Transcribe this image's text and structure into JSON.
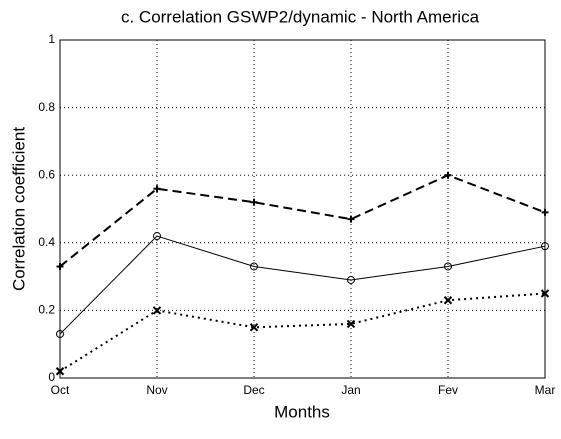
{
  "chart_data": {
    "type": "line",
    "title": "c. Correlation GSWP2/dynamic - North America",
    "x_label": "Months",
    "y_label": "Correlation coefficient",
    "categories": [
      "Oct",
      "Nov",
      "Dec",
      "Jan",
      "Fev",
      "Mar"
    ],
    "series": [
      {
        "color": "#000000",
        "dash": "dashed",
        "marker": "plus",
        "values": [
          0.33,
          0.56,
          0.52,
          0.47,
          0.6,
          0.49
        ]
      },
      {
        "color": "#000000",
        "dash": "solid",
        "marker": "circle",
        "values": [
          0.13,
          0.42,
          0.33,
          0.29,
          0.33,
          0.39
        ]
      },
      {
        "color": "#000000",
        "dash": "dotted",
        "marker": "cross",
        "values": [
          0.02,
          0.2,
          0.15,
          0.16,
          0.23,
          0.25
        ]
      }
    ],
    "ylim": [
      0,
      1
    ],
    "yticks": [
      0,
      0.2,
      0.4,
      0.6,
      0.8,
      1
    ],
    "grid": true
  }
}
